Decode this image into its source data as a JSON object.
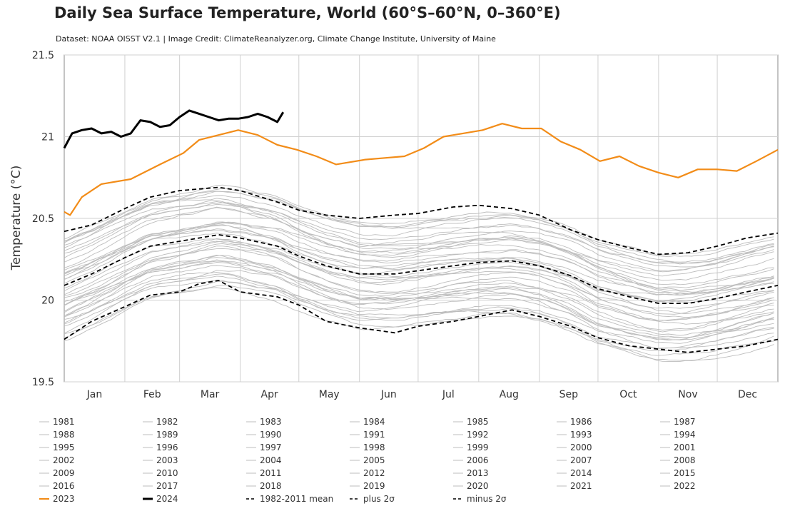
{
  "chart_data": {
    "type": "line",
    "title": "Daily Sea Surface Temperature, World (60°S–60°N, 0–360°E)",
    "subtitle": "Dataset: NOAA OISST V2.1 | Image Credit: ClimateReanalyzer.org, Climate Change Institute, University of Maine",
    "xlabel": "",
    "ylabel": "Temperature (°C)",
    "ylim": [
      19.5,
      21.5
    ],
    "y_ticks": [
      19.5,
      20,
      20.5,
      21,
      21.5
    ],
    "y_tick_labels": [
      "19.5",
      "20",
      "20.5",
      "21",
      "21.5"
    ],
    "xlim": [
      1,
      366
    ],
    "x_unit": "day of year",
    "month_labels": [
      "Jan",
      "Feb",
      "Mar",
      "Apr",
      "May",
      "Jun",
      "Jul",
      "Aug",
      "Sep",
      "Oct",
      "Nov",
      "Dec"
    ],
    "month_starts": [
      1,
      32,
      60,
      91,
      121,
      152,
      182,
      213,
      244,
      274,
      305,
      335
    ],
    "grid": true,
    "legend_position": "bottom",
    "colors": {
      "year_grey": "#bdbdbd",
      "y2023": "#f28c18",
      "y2024": "#000000",
      "mean": "#000000",
      "axis": "#888888",
      "grid": "#d0d0d0"
    },
    "series": [
      {
        "name": "2023",
        "style": "orange-thick",
        "x": [
          1,
          4,
          10,
          20,
          35,
          50,
          62,
          70,
          80,
          90,
          100,
          110,
          120,
          130,
          140,
          155,
          165,
          175,
          185,
          195,
          205,
          215,
          225,
          235,
          245,
          255,
          265,
          275,
          285,
          295,
          305,
          315,
          325,
          335,
          345,
          355,
          366
        ],
        "y": [
          20.54,
          20.52,
          20.63,
          20.71,
          20.74,
          20.83,
          20.9,
          20.98,
          21.01,
          21.04,
          21.01,
          20.95,
          20.92,
          20.88,
          20.83,
          20.86,
          20.87,
          20.88,
          20.93,
          21.0,
          21.02,
          21.04,
          21.08,
          21.05,
          21.05,
          20.97,
          20.92,
          20.85,
          20.88,
          20.82,
          20.78,
          20.75,
          20.8,
          20.8,
          20.79,
          20.85,
          20.92
        ]
      },
      {
        "name": "2024",
        "style": "black-thick",
        "x": [
          1,
          5,
          10,
          15,
          20,
          25,
          30,
          35,
          40,
          45,
          50,
          55,
          60,
          65,
          70,
          75,
          80,
          85,
          90,
          95,
          100,
          105,
          110,
          113
        ],
        "y": [
          20.93,
          21.02,
          21.04,
          21.05,
          21.02,
          21.03,
          21.0,
          21.02,
          21.1,
          21.09,
          21.06,
          21.07,
          21.12,
          21.16,
          21.14,
          21.12,
          21.1,
          21.11,
          21.11,
          21.12,
          21.14,
          21.12,
          21.09,
          21.15
        ]
      },
      {
        "name": "1982-2011 mean",
        "style": "black-dashed",
        "x": [
          1,
          15,
          32,
          45,
          60,
          70,
          80,
          91,
          110,
          121,
          135,
          152,
          170,
          182,
          200,
          213,
          230,
          244,
          260,
          274,
          290,
          305,
          320,
          335,
          350,
          366
        ],
        "y": [
          20.09,
          20.16,
          20.26,
          20.33,
          20.36,
          20.38,
          20.4,
          20.38,
          20.33,
          20.27,
          20.21,
          20.16,
          20.16,
          20.18,
          20.21,
          20.23,
          20.24,
          20.21,
          20.15,
          20.07,
          20.02,
          19.98,
          19.98,
          20.01,
          20.05,
          20.09
        ]
      },
      {
        "name": "plus 2σ",
        "style": "black-dashed",
        "x": [
          1,
          15,
          32,
          45,
          60,
          70,
          80,
          91,
          110,
          121,
          135,
          152,
          170,
          182,
          200,
          213,
          230,
          244,
          260,
          274,
          290,
          305,
          320,
          335,
          350,
          366
        ],
        "y": [
          20.42,
          20.46,
          20.56,
          20.63,
          20.67,
          20.68,
          20.69,
          20.67,
          20.6,
          20.55,
          20.52,
          20.5,
          20.52,
          20.53,
          20.57,
          20.58,
          20.56,
          20.52,
          20.43,
          20.37,
          20.32,
          20.28,
          20.29,
          20.33,
          20.38,
          20.41
        ]
      },
      {
        "name": "minus 2σ",
        "style": "black-dashed",
        "x": [
          1,
          15,
          32,
          45,
          60,
          70,
          80,
          91,
          110,
          121,
          135,
          152,
          170,
          182,
          200,
          213,
          230,
          244,
          260,
          274,
          290,
          305,
          320,
          335,
          350,
          366
        ],
        "y": [
          19.76,
          19.87,
          19.96,
          20.03,
          20.05,
          20.1,
          20.12,
          20.05,
          20.02,
          19.97,
          19.87,
          19.83,
          19.8,
          19.84,
          19.87,
          19.9,
          19.94,
          19.9,
          19.84,
          19.77,
          19.72,
          19.7,
          19.68,
          19.7,
          19.72,
          19.76
        ]
      }
    ],
    "legend": [
      "1981",
      "1982",
      "1983",
      "1984",
      "1985",
      "1986",
      "1987",
      "1988",
      "1989",
      "1990",
      "1991",
      "1992",
      "1993",
      "1994",
      "1995",
      "1996",
      "1997",
      "1998",
      "1999",
      "2000",
      "2001",
      "2002",
      "2003",
      "2004",
      "2005",
      "2006",
      "2007",
      "2008",
      "2009",
      "2010",
      "2011",
      "2012",
      "2013",
      "2014",
      "2015",
      "2016",
      "2017",
      "2018",
      "2019",
      "2020",
      "2021",
      "2022",
      "2023",
      "2024",
      "1982-2011 mean",
      "plus 2σ",
      "minus 2σ"
    ]
  }
}
